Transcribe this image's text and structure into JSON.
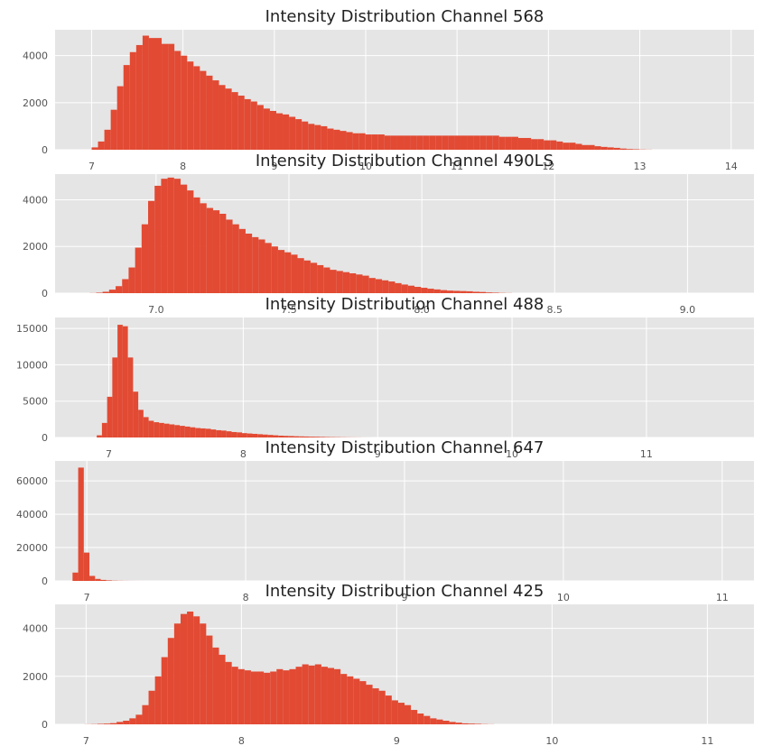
{
  "chart_data": [
    {
      "type": "bar",
      "title": "Intensity Distribution Channel 568",
      "xlim": [
        6.6,
        14.25
      ],
      "ylim": [
        0,
        5100
      ],
      "xticks": [
        7,
        8,
        9,
        10,
        11,
        12,
        13,
        14
      ],
      "xtick_labels": [
        "7",
        "8",
        "9",
        "10",
        "11",
        "12",
        "13",
        "14"
      ],
      "yticks": [
        0,
        2000,
        4000
      ],
      "ytick_labels": [
        "0",
        "2000",
        "4000"
      ],
      "bin_start": 7.0,
      "bin_width": 0.0697,
      "values": [
        100,
        350,
        850,
        1700,
        2700,
        3600,
        4150,
        4450,
        4850,
        4750,
        4750,
        4500,
        4500,
        4200,
        4000,
        3750,
        3550,
        3350,
        3150,
        2950,
        2750,
        2600,
        2450,
        2300,
        2150,
        2050,
        1900,
        1750,
        1650,
        1550,
        1500,
        1400,
        1300,
        1200,
        1100,
        1050,
        1000,
        900,
        850,
        800,
        750,
        700,
        700,
        650,
        650,
        650,
        600,
        600,
        600,
        600,
        600,
        600,
        600,
        600,
        600,
        600,
        600,
        600,
        600,
        600,
        600,
        600,
        600,
        600,
        550,
        550,
        550,
        500,
        500,
        450,
        450,
        400,
        400,
        350,
        300,
        300,
        250,
        200,
        200,
        150,
        120,
        100,
        80,
        50,
        30,
        20,
        10,
        5,
        0,
        0,
        0,
        0,
        0,
        0,
        0,
        0,
        0,
        0,
        0,
        0
      ]
    },
    {
      "type": "bar",
      "title": "Intensity Distribution Channel 490LS",
      "xlim": [
        6.62,
        9.25
      ],
      "ylim": [
        0,
        5100
      ],
      "xticks": [
        7.0,
        7.5,
        8.0,
        8.5,
        9.0
      ],
      "xtick_labels": [
        "7.0",
        "7.5",
        "8.0",
        "8.5",
        "9.0"
      ],
      "yticks": [
        0,
        2000,
        4000
      ],
      "ytick_labels": [
        "0",
        "2000",
        "4000"
      ],
      "bin_start": 6.75,
      "bin_width": 0.02445,
      "values": [
        5,
        20,
        60,
        150,
        300,
        600,
        1100,
        1950,
        2950,
        3950,
        4600,
        4900,
        4950,
        4900,
        4650,
        4400,
        4100,
        3850,
        3650,
        3550,
        3400,
        3150,
        2950,
        2750,
        2550,
        2400,
        2300,
        2150,
        2000,
        1850,
        1750,
        1650,
        1500,
        1400,
        1300,
        1200,
        1100,
        1000,
        950,
        900,
        850,
        800,
        750,
        650,
        600,
        550,
        500,
        430,
        370,
        320,
        270,
        230,
        190,
        160,
        130,
        110,
        100,
        90,
        80,
        60,
        50,
        30,
        20,
        10,
        5,
        0,
        0,
        0,
        0,
        0,
        0,
        0,
        0,
        0,
        0,
        0,
        0,
        0,
        0,
        0,
        0,
        0,
        0,
        0,
        0,
        0,
        0,
        0,
        0,
        0,
        0,
        0,
        0,
        0,
        0,
        0,
        0,
        0,
        0,
        0
      ]
    },
    {
      "type": "bar",
      "title": "Intensity Distribution Channel 488",
      "xlim": [
        6.6,
        11.8
      ],
      "ylim": [
        0,
        16500
      ],
      "xticks": [
        7,
        8,
        9,
        10,
        11
      ],
      "xtick_labels": [
        "7",
        "8",
        "9",
        "10",
        "11"
      ],
      "yticks": [
        0,
        5000,
        10000,
        15000
      ],
      "ytick_labels": [
        "0",
        "5000",
        "10000",
        "15000"
      ],
      "bin_start": 6.91,
      "bin_width": 0.0386,
      "values": [
        300,
        2000,
        5600,
        11000,
        15500,
        15300,
        11000,
        6300,
        3800,
        2800,
        2300,
        2100,
        2000,
        1900,
        1800,
        1700,
        1600,
        1500,
        1400,
        1300,
        1250,
        1200,
        1100,
        1000,
        950,
        850,
        750,
        700,
        600,
        550,
        500,
        450,
        400,
        350,
        300,
        250,
        220,
        200,
        170,
        150,
        130,
        110,
        100,
        80,
        60,
        50,
        40,
        30,
        20,
        15,
        10,
        5,
        3,
        0,
        0,
        0,
        0,
        0,
        0,
        0,
        0,
        0,
        0,
        0,
        0,
        0,
        0,
        0,
        0,
        0,
        0,
        0,
        0,
        0,
        0,
        0,
        0,
        0,
        0,
        0,
        0,
        0,
        0,
        0,
        0,
        0,
        0,
        0,
        0,
        0,
        0,
        0,
        0,
        0,
        0,
        0,
        0,
        0,
        0,
        0
      ]
    },
    {
      "type": "bar",
      "title": "Intensity Distribution Channel 647",
      "xlim": [
        6.8,
        11.2
      ],
      "ylim": [
        0,
        72000
      ],
      "xticks": [
        7,
        8,
        9,
        10,
        11
      ],
      "xtick_labels": [
        "7",
        "8",
        "9",
        "10",
        "11"
      ],
      "yticks": [
        0,
        20000,
        40000,
        60000
      ],
      "ytick_labels": [
        "0",
        "20000",
        "40000",
        "60000"
      ],
      "bin_start": 6.91,
      "bin_width": 0.0354,
      "values": [
        5000,
        68000,
        17000,
        3000,
        1200,
        600,
        300,
        150,
        80,
        40,
        20,
        10,
        5,
        0,
        0,
        0,
        0,
        0,
        0,
        0,
        0,
        0,
        0,
        0,
        0,
        0,
        0,
        0,
        0,
        0,
        0,
        0,
        0,
        0,
        0,
        0,
        0,
        0,
        0,
        0,
        0,
        0,
        0,
        0,
        0,
        0,
        0,
        0,
        0,
        0,
        0,
        0,
        0,
        0,
        0,
        0,
        0,
        0,
        0,
        0,
        0,
        0,
        0,
        0,
        0,
        0,
        0,
        0,
        0,
        0,
        0,
        0,
        0,
        0,
        0,
        0,
        0,
        0,
        0,
        0,
        0,
        0,
        0,
        0,
        0,
        0,
        0,
        0,
        0,
        0,
        0,
        0,
        0,
        0,
        0,
        0,
        0,
        0,
        0,
        0
      ]
    },
    {
      "type": "bar",
      "title": "Intensity Distribution Channel 425",
      "xlim": [
        6.8,
        11.3
      ],
      "ylim": [
        0,
        5000
      ],
      "xticks": [
        7,
        8,
        9,
        10,
        11
      ],
      "xtick_labels": [
        "7",
        "8",
        "9",
        "10",
        "11"
      ],
      "yticks": [
        0,
        2000,
        4000
      ],
      "ytick_labels": [
        "0",
        "2000",
        "4000"
      ],
      "bin_start": 6.99,
      "bin_width": 0.0412,
      "values": [
        5,
        10,
        20,
        30,
        50,
        100,
        150,
        250,
        400,
        800,
        1400,
        2000,
        2800,
        3600,
        4200,
        4600,
        4700,
        4500,
        4200,
        3700,
        3200,
        2900,
        2600,
        2400,
        2300,
        2250,
        2200,
        2200,
        2150,
        2200,
        2300,
        2250,
        2300,
        2400,
        2500,
        2450,
        2500,
        2400,
        2350,
        2300,
        2100,
        2000,
        1900,
        1800,
        1650,
        1500,
        1400,
        1200,
        1000,
        900,
        800,
        600,
        450,
        350,
        250,
        200,
        150,
        100,
        70,
        40,
        30,
        20,
        10,
        5,
        0,
        0,
        0,
        0,
        0,
        0,
        0,
        0,
        0,
        0,
        0,
        0,
        0,
        0,
        0,
        0,
        0,
        0,
        0,
        0,
        0,
        0,
        0,
        0,
        0,
        0,
        0,
        0,
        0,
        0,
        0,
        0,
        0,
        0,
        0,
        0
      ]
    }
  ],
  "style": {
    "bar_color": "#e24a33",
    "panel_color": "#e5e5e5",
    "grid_color": "#ffffff"
  }
}
